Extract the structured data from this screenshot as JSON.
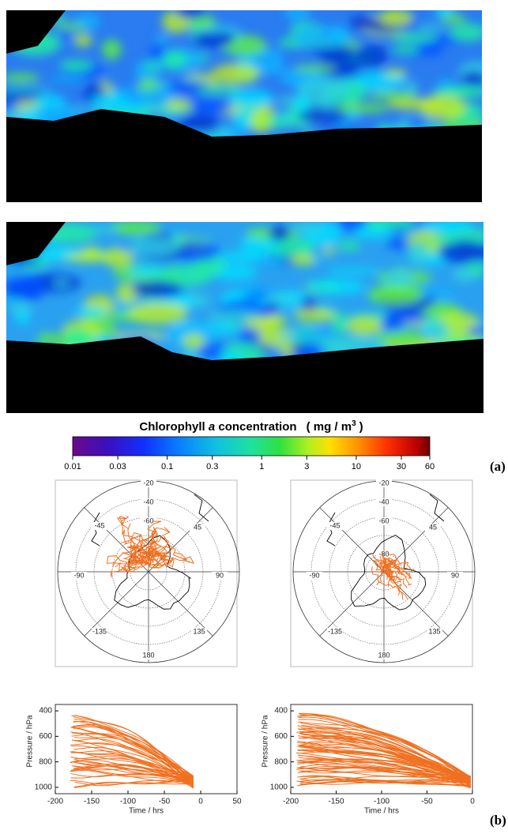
{
  "panel_a": {
    "label": "(a)",
    "colorbar": {
      "title": "Chlorophyll",
      "title_italic": "a",
      "title_rest": "concentration",
      "unit": "( mg / m",
      "unit_sup": "3",
      "unit_close": ")",
      "ticks": [
        0.01,
        0.03,
        0.1,
        0.3,
        1,
        3,
        10,
        30,
        60
      ]
    }
  },
  "panel_b": {
    "label": "(b)",
    "maps": [
      {
        "labels": [
          "-20",
          "-40",
          "-60",
          "-80",
          "45",
          "90",
          "135",
          "180",
          "-135",
          "-90",
          "-45"
        ]
      },
      {
        "labels": [
          "-20",
          "-40",
          "-60",
          "-80",
          "45",
          "90",
          "135",
          "180",
          "-135",
          "-90",
          "-45"
        ]
      }
    ],
    "profiles": [
      {
        "xlabel": "Time / hrs",
        "ylabel": "Pressure / hPa",
        "xlim": [
          -200,
          50
        ],
        "ylim": [
          350,
          1050
        ],
        "xticks": [
          -200,
          -150,
          -100,
          -50,
          0,
          50
        ],
        "yticks": [
          400,
          600,
          800,
          1000
        ]
      },
      {
        "xlabel": "Time / hrs",
        "ylabel": "Pressure / hPa",
        "xlim": [
          -200,
          0
        ],
        "ylim": [
          350,
          1050
        ],
        "xticks": [
          -200,
          -150,
          -100,
          -50,
          0
        ],
        "yticks": [
          400,
          600,
          800,
          1000
        ]
      }
    ]
  }
}
